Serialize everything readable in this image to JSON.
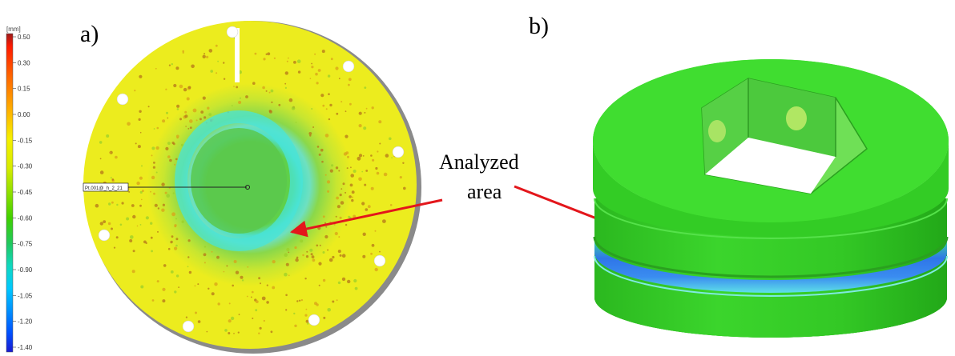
{
  "figure": {
    "panel_a_label": "a)",
    "panel_b_label": "b)",
    "annotation": {
      "line1": "Analyzed",
      "line2": "area"
    },
    "probe_label": "Pt.001@_h_2_21"
  },
  "colorbar": {
    "unit": "[mm]",
    "ticks": [
      "0.50",
      "0.30",
      "0.15",
      "0.00",
      "-0.15",
      "-0.30",
      "-0.45",
      "-0.60",
      "-0.75",
      "-0.90",
      "-1.05",
      "-1.20",
      "-1.40"
    ],
    "colors": [
      "#9b1b1b",
      "#ff1a00",
      "#ff6a00",
      "#ffb000",
      "#f6f000",
      "#d8ec00",
      "#8fe000",
      "#40d000",
      "#20c860",
      "#10d8c0",
      "#00c8ff",
      "#0090ff",
      "#0050ff",
      "#1a1ad0"
    ]
  },
  "colors": {
    "yellow_surface": "#ecec1e",
    "green_surface": "#37d72a",
    "cyan_ring": "#3fe0d0",
    "arrow": "#e3161b",
    "groove_blue": "#2f76e8"
  }
}
